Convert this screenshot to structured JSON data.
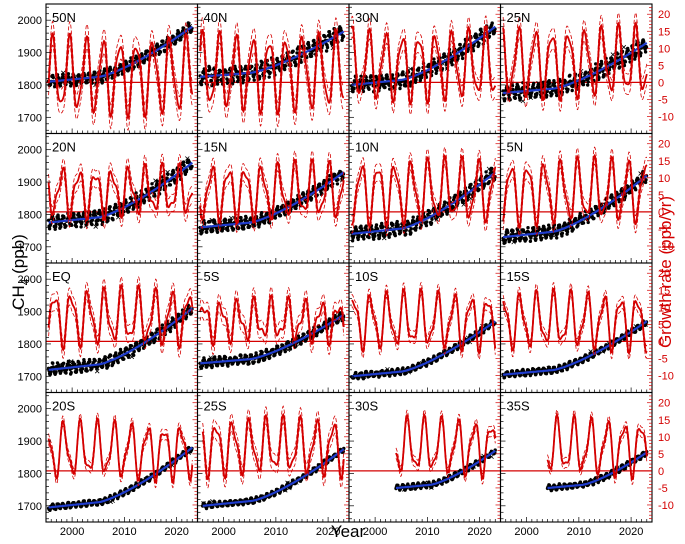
{
  "chart_data": {
    "type": "line",
    "xlabel": "Year",
    "ylabel_left_base": "CH",
    "ylabel_left_sub": "4",
    "ylabel_left_unit": " (ppb)",
    "ylabel_right": "Growth rate (ppb/yr)",
    "xlim": [
      1995,
      2024
    ],
    "ylim_left": [
      1650,
      2050
    ],
    "ylim_right": [
      -15,
      23
    ],
    "x_ticks": [
      2000,
      2010,
      2020
    ],
    "x_tick_labels": [
      "2000",
      "2010",
      "2020"
    ],
    "y_left_ticks": [
      1700,
      1800,
      1900,
      2000
    ],
    "y_left_tick_labels": [
      "1700",
      "1800",
      "1900",
      "2000"
    ],
    "y_right_ticks": [
      -10,
      -5,
      0,
      5,
      10,
      15,
      20
    ],
    "y_right_tick_labels": [
      "-10",
      "-5",
      "0",
      "5",
      "10",
      "15",
      "20"
    ],
    "colors": {
      "observations": "#000000",
      "trend": "#1f3ccc",
      "growth_rate": "#d40000",
      "zero_line": "#d40000",
      "right_axis": "#d40000"
    },
    "legend_glyphs": {
      "observation_marker": "●",
      "outlier_marker": "×"
    },
    "panels": [
      {
        "label": "50N",
        "start": 1995.5,
        "trend_start": 1810,
        "trend_end": 1980,
        "obs_amp": 15,
        "growth_base": 2,
        "growth_amp": 10,
        "ci_width": 3.5
      },
      {
        "label": "40N",
        "start": 1995.5,
        "trend_start": 1825,
        "trend_end": 1965,
        "obs_amp": 22,
        "growth_base": 3,
        "growth_amp": 10,
        "ci_width": 3.5
      },
      {
        "label": "30N",
        "start": 1995.5,
        "trend_start": 1800,
        "trend_end": 1980,
        "obs_amp": 20,
        "growth_base": 5,
        "growth_amp": 9,
        "ci_width": 3
      },
      {
        "label": "25N",
        "start": 1995.5,
        "trend_start": 1775,
        "trend_end": 1930,
        "obs_amp": 20,
        "growth_base": 6,
        "growth_amp": 9,
        "ci_width": 3
      },
      {
        "label": "20N",
        "start": 1995.5,
        "trend_start": 1775,
        "trend_end": 1960,
        "obs_amp": 18,
        "growth_base": 6,
        "growth_amp": 6,
        "ci_width": 2.5
      },
      {
        "label": "15N",
        "start": 1995.5,
        "trend_start": 1760,
        "trend_end": 1930,
        "obs_amp": 16,
        "growth_base": 6,
        "growth_amp": 7,
        "ci_width": 2.5
      },
      {
        "label": "10N",
        "start": 1995.5,
        "trend_start": 1740,
        "trend_end": 1930,
        "obs_amp": 18,
        "growth_base": 6,
        "growth_amp": 8,
        "ci_width": 2.5
      },
      {
        "label": "5N",
        "start": 1995.5,
        "trend_start": 1730,
        "trend_end": 1920,
        "obs_amp": 16,
        "growth_base": 6,
        "growth_amp": 8,
        "ci_width": 2.5
      },
      {
        "label": "EQ",
        "start": 1995.5,
        "trend_start": 1720,
        "trend_end": 1910,
        "obs_amp": 15,
        "growth_base": 7,
        "growth_amp": 7,
        "ci_width": 2.5
      },
      {
        "label": "5S",
        "start": 1995.5,
        "trend_start": 1740,
        "trend_end": 1890,
        "obs_amp": 12,
        "growth_base": 6,
        "growth_amp": 5,
        "ci_width": 2.5
      },
      {
        "label": "10S",
        "start": 1995.5,
        "trend_start": 1700,
        "trend_end": 1870,
        "obs_amp": 8,
        "growth_base": 6,
        "growth_amp": 7,
        "ci_width": 1.8
      },
      {
        "label": "15S",
        "start": 1995.5,
        "trend_start": 1705,
        "trend_end": 1870,
        "obs_amp": 8,
        "growth_base": 6,
        "growth_amp": 7,
        "ci_width": 1.8
      },
      {
        "label": "20S",
        "start": 1995.5,
        "trend_start": 1695,
        "trend_end": 1880,
        "obs_amp": 7,
        "growth_base": 6,
        "growth_amp": 7,
        "ci_width": 1.5
      },
      {
        "label": "25S",
        "start": 1996.0,
        "trend_start": 1700,
        "trend_end": 1875,
        "obs_amp": 7,
        "growth_base": 7,
        "growth_amp": 7,
        "ci_width": 2.5
      },
      {
        "label": "30S",
        "start": 2004.0,
        "trend_start": 1755,
        "trend_end": 1870,
        "obs_amp": 7,
        "growth_base": 7,
        "growth_amp": 7,
        "ci_width": 1.5
      },
      {
        "label": "35S",
        "start": 2004.0,
        "trend_start": 1755,
        "trend_end": 1865,
        "obs_amp": 7,
        "growth_base": 7,
        "growth_amp": 7,
        "ci_width": 1.5
      }
    ]
  }
}
